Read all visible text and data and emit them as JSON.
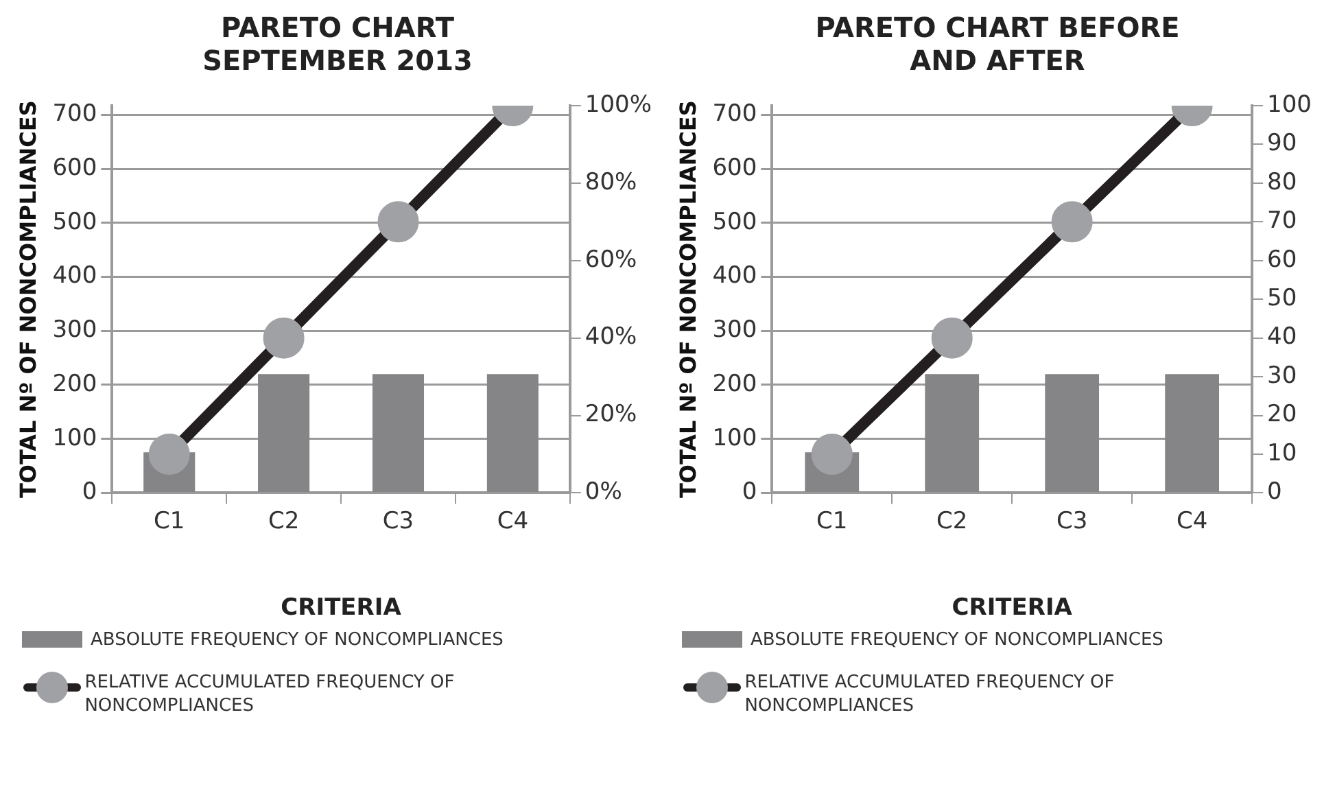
{
  "chart_data": [
    {
      "type": "bar",
      "title": "PARETO CHART SEPTEMBER 2013",
      "xlabel": "CRITERIA",
      "ylabel": "TOTAL Nº OF NONCOMPLIANCES",
      "categories": [
        "C1",
        "C2",
        "C3",
        "C4"
      ],
      "series": [
        {
          "name": "ABSOLUTE FREQUENCY OF NONCOMPLIANCES",
          "color": "#858587",
          "values": [
            75,
            220,
            220,
            220
          ]
        },
        {
          "name": "RELATIVE ACCUMULATED FREQUENCY OF NONCOMPLIANCES",
          "type": "line",
          "axis": "y2",
          "color": "#231f20",
          "values": [
            10,
            40,
            70,
            100
          ]
        }
      ],
      "ylim": [
        0,
        717
      ],
      "yticks": [
        0,
        100,
        200,
        300,
        400,
        500,
        600,
        700
      ],
      "y2lim": [
        0,
        100
      ],
      "y2ticks": [
        {
          "value": 0,
          "label": "0%"
        },
        {
          "value": 20,
          "label": "20%"
        },
        {
          "value": 40,
          "label": "40%"
        },
        {
          "value": 60,
          "label": "60%"
        },
        {
          "value": 80,
          "label": "80%"
        },
        {
          "value": 100,
          "label": "100%"
        }
      ],
      "grid": "y",
      "legend": "bottom left",
      "marker": "circle",
      "line_style": "solid"
    },
    {
      "type": "bar",
      "title": "PARETO CHART BEFORE AND AFTER",
      "xlabel": "CRITERIA",
      "ylabel": "TOTAL Nº OF NONCOMPLIANCES",
      "categories": [
        "C1",
        "C2",
        "C3",
        "C4"
      ],
      "series": [
        {
          "name": "ABSOLUTE FREQUENCY OF NONCOMPLIANCES",
          "color": "#858587",
          "values": [
            75,
            220,
            220,
            220
          ]
        },
        {
          "name": "RELATIVE ACCUMULATED FREQUENCY OF NONCOMPLIANCES",
          "type": "line",
          "axis": "y2",
          "color": "#231f20",
          "values": [
            10,
            40,
            70,
            100
          ]
        }
      ],
      "ylim": [
        0,
        717
      ],
      "yticks": [
        0,
        100,
        200,
        300,
        400,
        500,
        600,
        700
      ],
      "y2lim": [
        0,
        100
      ],
      "y2ticks": [
        0,
        10,
        20,
        30,
        40,
        50,
        60,
        70,
        80,
        90,
        100
      ],
      "grid": "y",
      "legend": "bottom left",
      "marker": "circle",
      "line_style": "solid"
    }
  ]
}
